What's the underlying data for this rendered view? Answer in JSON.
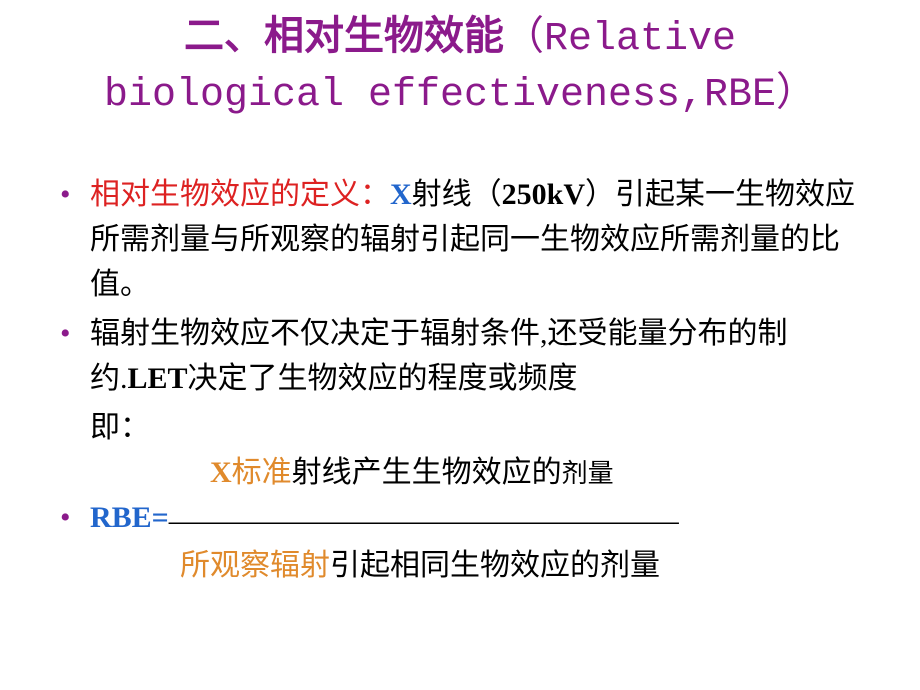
{
  "title": {
    "line1_cn": "二、相对生物效能",
    "line1_en_open": "（Relative",
    "line2_en": "biological effectiveness,RBE）"
  },
  "bullet1": {
    "label": "相对生物效应的定义：",
    "x": "X",
    "text1": "射线（",
    "kv": "250kV",
    "text2": "）引起某一生物效应所需剂量与所观察的辐射引起同一生物效应所需剂量的比值。"
  },
  "bullet2": {
    "text1": "辐射生物效应不仅决定于辐射条件,还受能量分布的制约.",
    "let": "LET",
    "text2": "决定了生物效应的程度或频度"
  },
  "indent_line": "即：",
  "formula": {
    "num_x": "X",
    "num_std": "标准",
    "num_rest": "射线产生生物效应的",
    "num_dose": "剂量",
    "rbe": "RBE=",
    "line": "—————————————————",
    "denom_obs": "所观察辐射",
    "denom_rest": "引起相同生物效应的剂量"
  },
  "colors": {
    "title": "#8b1a8b",
    "red": "#d22",
    "blue": "#2266cc",
    "orange": "#e08a2c",
    "text": "#000000",
    "bg": "#ffffff"
  },
  "fonts": {
    "title_size": 40,
    "body_size": 30,
    "small_size": 26
  }
}
